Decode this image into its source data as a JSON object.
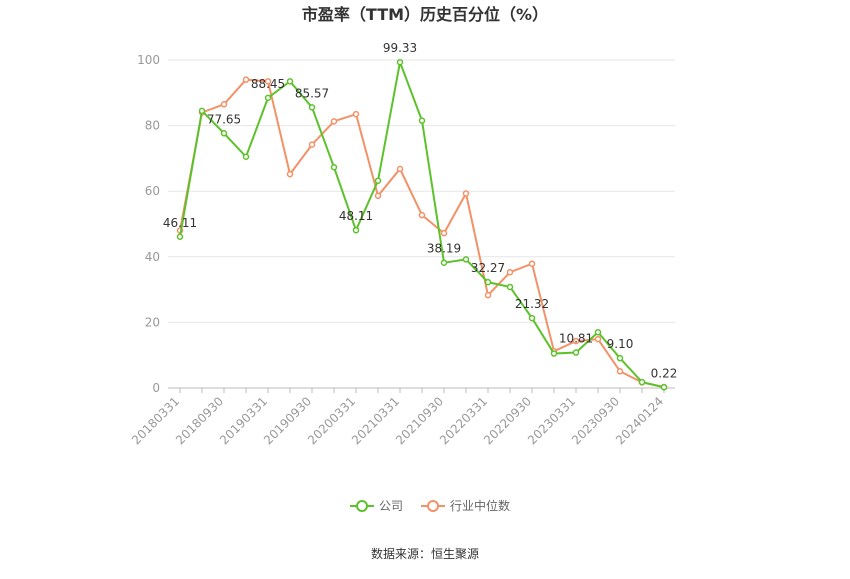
{
  "chart_data": {
    "type": "line",
    "title": "市盈率（TTM）历史百分位（%）",
    "categories": [
      "20180331",
      null,
      "20180930",
      null,
      "20190331",
      null,
      "20190930",
      null,
      "20200331",
      null,
      "20210331",
      null,
      "20210930",
      null,
      "20220331",
      null,
      "20220930",
      null,
      "20230331",
      null,
      "20230930",
      null,
      "20240124"
    ],
    "series": [
      {
        "name": "公司",
        "color": "#5cc22c",
        "values": [
          46.11,
          84.5,
          77.65,
          70.5,
          88.45,
          93.5,
          85.57,
          67.3,
          48.11,
          63.2,
          99.33,
          81.5,
          38.19,
          39.2,
          32.27,
          30.8,
          21.32,
          10.5,
          10.81,
          17.0,
          9.1,
          1.8,
          0.22
        ],
        "value_labels": [
          "46.11",
          null,
          "77.65",
          null,
          "88.45",
          null,
          "85.57",
          null,
          "48.11",
          null,
          "99.33",
          null,
          "38.19",
          null,
          "32.27",
          null,
          "21.32",
          null,
          "10.81",
          null,
          "9.10",
          null,
          "0.22"
        ]
      },
      {
        "name": "行业中位数",
        "color": "#f39167",
        "values": [
          48.0,
          84.0,
          86.5,
          94.0,
          93.5,
          65.2,
          74.2,
          81.3,
          83.5,
          58.6,
          66.8,
          52.7,
          47.2,
          59.3,
          28.3,
          35.3,
          37.9,
          11.2,
          14.3,
          14.9,
          5.1,
          1.7,
          0.3
        ]
      }
    ],
    "ylim": [
      0,
      100
    ],
    "yticks": [
      0,
      20,
      40,
      60,
      80,
      100
    ],
    "grid": true,
    "legend": "bottom",
    "source": "数据来源：恒生聚源"
  }
}
